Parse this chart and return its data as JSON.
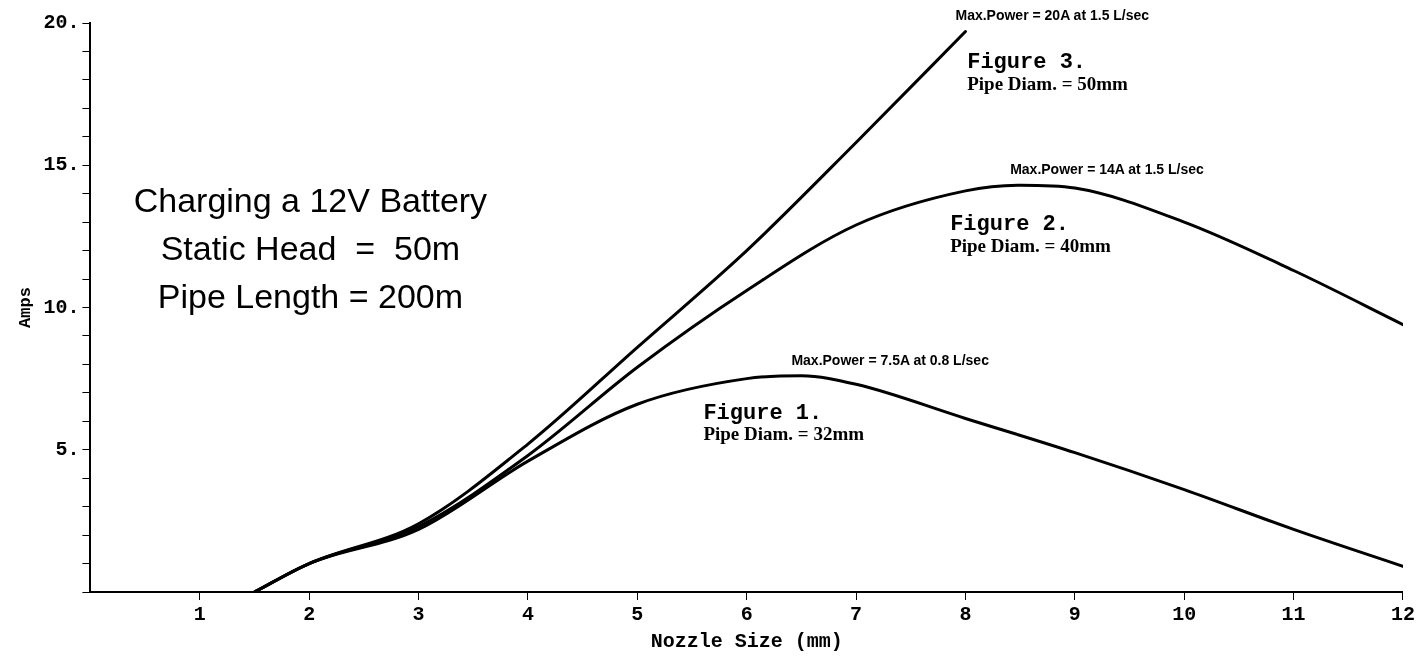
{
  "chart_data": {
    "type": "line",
    "xlabel": "Nozzle Size (mm)",
    "ylabel": "Amps",
    "xlim": [
      0,
      12
    ],
    "ylim": [
      0,
      20
    ],
    "xticks": [
      1,
      2,
      3,
      4,
      5,
      6,
      7,
      8,
      9,
      10,
      11,
      12
    ],
    "yticks": [
      {
        "value": 0,
        "label": null
      },
      {
        "value": 1,
        "label": null
      },
      {
        "value": 2,
        "label": null
      },
      {
        "value": 3,
        "label": null
      },
      {
        "value": 4,
        "label": null
      },
      {
        "value": 5,
        "label": "5."
      },
      {
        "value": 6,
        "label": null
      },
      {
        "value": 7,
        "label": null
      },
      {
        "value": 8,
        "label": null
      },
      {
        "value": 9,
        "label": null
      },
      {
        "value": 10,
        "label": "10."
      },
      {
        "value": 11,
        "label": null
      },
      {
        "value": 12,
        "label": null
      },
      {
        "value": 13,
        "label": null
      },
      {
        "value": 14,
        "label": null
      },
      {
        "value": 15,
        "label": "15."
      },
      {
        "value": 16,
        "label": null
      },
      {
        "value": 17,
        "label": null
      },
      {
        "value": 18,
        "label": null
      },
      {
        "value": 19,
        "label": null
      },
      {
        "value": 20,
        "label": "20."
      }
    ],
    "grid": false,
    "legend": false,
    "marker": "none",
    "line_style": "solid",
    "series": [
      {
        "color": "#000000",
        "x": [
          1.5,
          2,
          3,
          4,
          5,
          6,
          6.5,
          7,
          8,
          9,
          10,
          11,
          12
        ],
        "values": [
          0,
          1.0,
          2.2,
          4.6,
          6.6,
          7.5,
          7.6,
          7.3,
          6.1,
          4.9,
          3.6,
          2.2,
          0.9
        ]
      },
      {
        "color": "#000000",
        "x": [
          1.5,
          2,
          3,
          4,
          5,
          6,
          7,
          8,
          8.5,
          9,
          10,
          11,
          12
        ],
        "values": [
          0,
          1.0,
          2.3,
          4.8,
          7.9,
          10.6,
          12.9,
          14.1,
          14.3,
          14.2,
          13.0,
          11.3,
          9.4
        ]
      },
      {
        "color": "#000000",
        "x": [
          1.5,
          2,
          3,
          4,
          5,
          6,
          7,
          8
        ],
        "values": [
          0,
          1.0,
          2.4,
          5.2,
          8.6,
          12.0,
          15.8,
          19.7
        ]
      }
    ],
    "annotations": [
      "Charging a 12V Battery",
      "Static Head  =  50m",
      "Pipe Length = 200m",
      {
        "text": "Max.Power = 7.5A at 0.8 L/sec",
        "x": 6.5,
        "y": 7.6
      },
      {
        "text": "Max.Power = 14A at 1.5 L/sec",
        "x": 8.5,
        "y": 14.3
      },
      {
        "text": "Max.Power = 20A at 1.5 L/sec",
        "x": 8,
        "y": 19.7
      },
      "Figure 1.\nPipe Diam. = 32mm",
      "Figure 2.\nPipe Diam. = 40mm",
      "Figure 3.\nPipe Diam. = 50mm"
    ]
  }
}
